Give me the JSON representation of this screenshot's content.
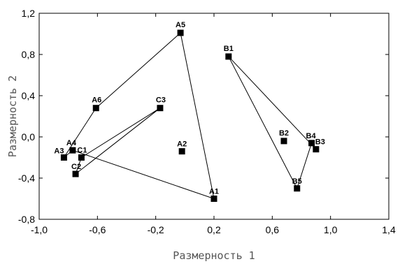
{
  "chart_data": {
    "type": "scatter",
    "title": "",
    "xlabel": "Размерность 1",
    "ylabel": "Размерность 2",
    "xlim": [
      -1.0,
      1.4
    ],
    "ylim": [
      -0.8,
      1.2
    ],
    "xticks": [
      -1.0,
      -0.6,
      -0.2,
      0.2,
      0.6,
      1.0,
      1.4
    ],
    "yticks": [
      -0.8,
      -0.4,
      0.0,
      0.4,
      0.8,
      1.2
    ],
    "xtick_labels": [
      "-1,0",
      "-0,6",
      "-0,2",
      "0,2",
      "0,6",
      "1,0",
      "1,4"
    ],
    "ytick_labels": [
      "-0,8",
      "-0,4",
      "0,0",
      "0,4",
      "0,8",
      "1,2"
    ],
    "grid": false,
    "legend": "none",
    "marker_color": "#000000",
    "points": [
      {
        "label": "A1",
        "x": 0.2,
        "y": -0.6
      },
      {
        "label": "A2",
        "x": -0.02,
        "y": -0.14
      },
      {
        "label": "A3",
        "x": -0.83,
        "y": -0.2
      },
      {
        "label": "A4",
        "x": -0.77,
        "y": -0.13
      },
      {
        "label": "A5",
        "x": -0.03,
        "y": 1.01
      },
      {
        "label": "A6",
        "x": -0.61,
        "y": 0.28
      },
      {
        "label": "B1",
        "x": 0.3,
        "y": 0.78
      },
      {
        "label": "B2",
        "x": 0.68,
        "y": -0.04
      },
      {
        "label": "B3",
        "x": 0.9,
        "y": -0.12
      },
      {
        "label": "B4",
        "x": 0.87,
        "y": -0.06
      },
      {
        "label": "B5",
        "x": 0.77,
        "y": -0.5
      },
      {
        "label": "C1",
        "x": -0.71,
        "y": -0.2
      },
      {
        "label": "C2",
        "x": -0.75,
        "y": -0.36
      },
      {
        "label": "C3",
        "x": -0.17,
        "y": 0.28
      }
    ],
    "polygons": [
      [
        "A5",
        "A1",
        "A4",
        "A3",
        "A6",
        "A5"
      ],
      [
        "C3",
        "C2",
        "C1",
        "C3"
      ],
      [
        "B1",
        "B3",
        "B4",
        "B5",
        "B1"
      ]
    ]
  }
}
